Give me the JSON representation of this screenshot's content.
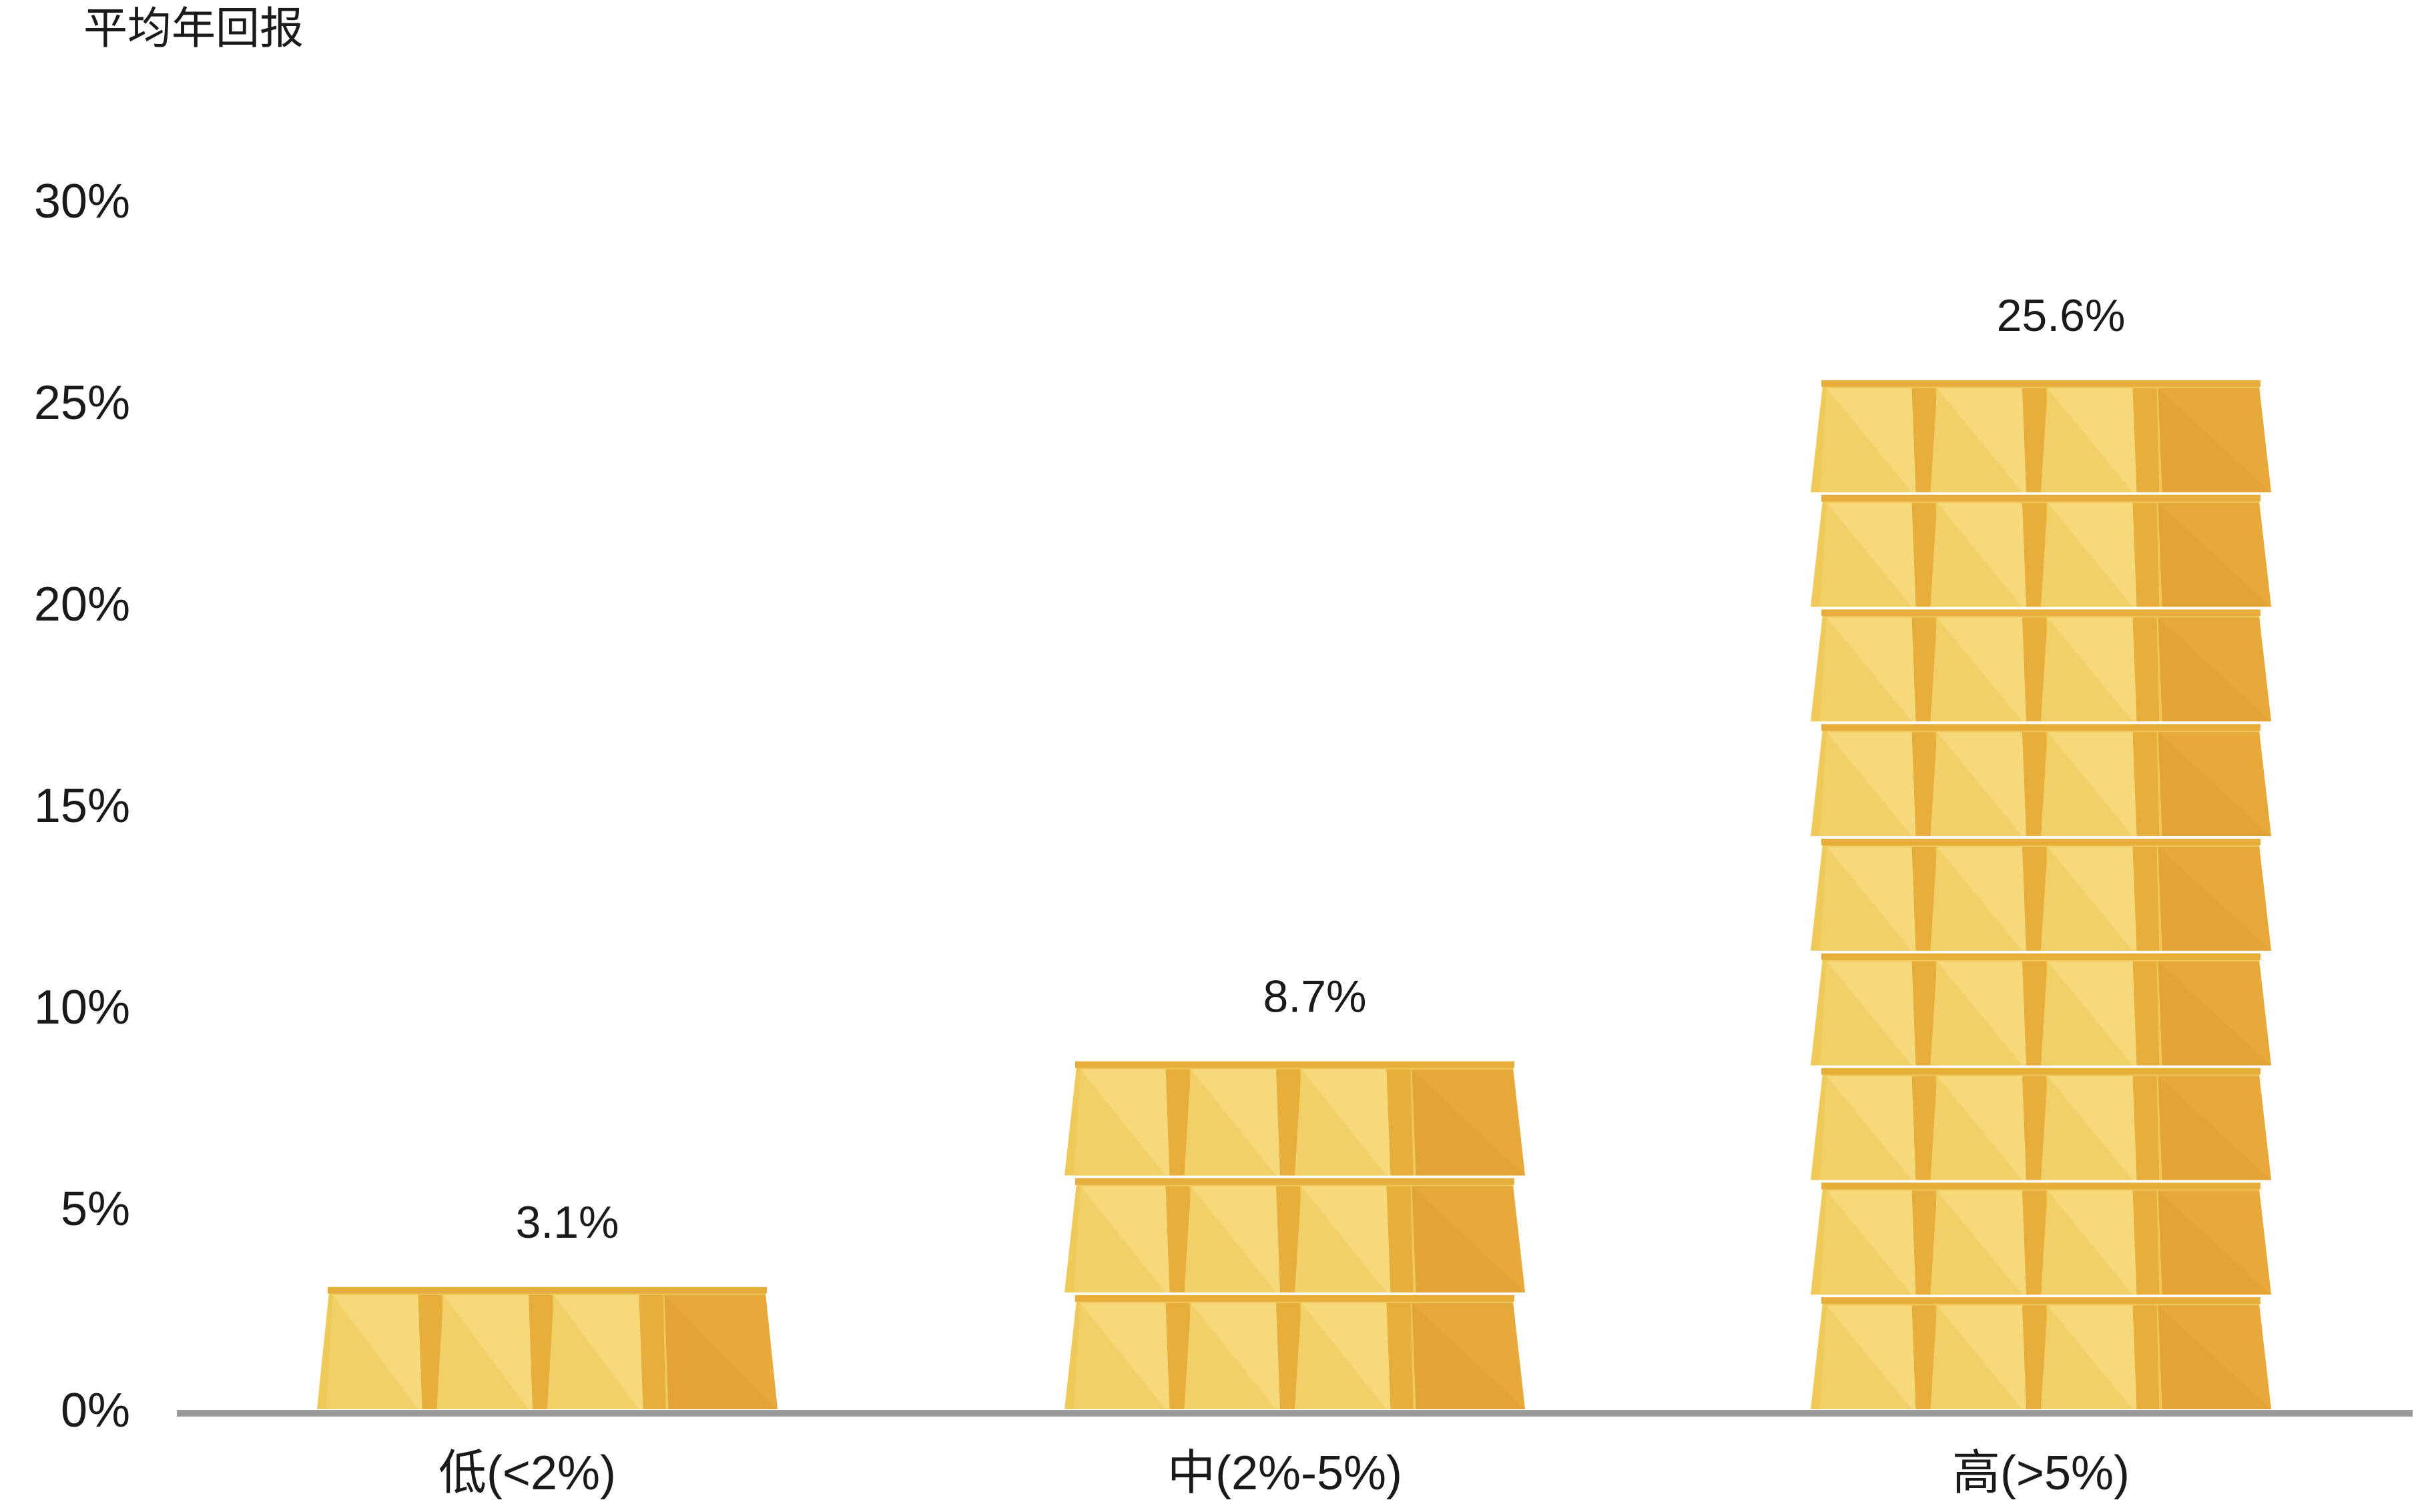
{
  "chart_data": {
    "type": "bar",
    "ylabel": "平均年回报",
    "categories": [
      "低(<2%)",
      "中(2%-5%)",
      "高(>5%)"
    ],
    "values": [
      3.1,
      8.7,
      25.6
    ],
    "value_labels": [
      "3.1%",
      "8.7%",
      "25.6%"
    ],
    "ylim": [
      0,
      30
    ],
    "yticks": [
      "0%",
      "5%",
      "10%",
      "15%",
      "20%",
      "25%",
      "30%"
    ],
    "grid": false,
    "bar_style": "stacked gold bars",
    "colors": {
      "gold_light": "#F5D97A",
      "gold_mid": "#EFC95A",
      "gold_dark": "#E8AE3C",
      "gold_deep": "#E3A437",
      "axis": "#999999"
    }
  }
}
